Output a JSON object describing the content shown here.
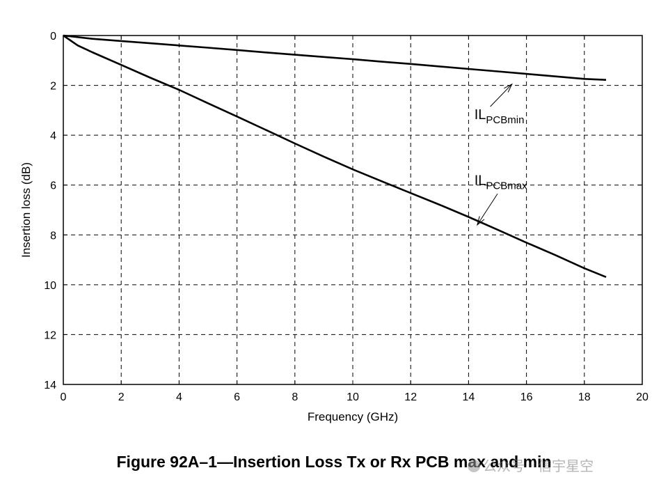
{
  "chart_data": {
    "type": "line",
    "title": "",
    "xlabel": "Frequency (GHz)",
    "ylabel": "Insertion loss (dB)",
    "xlim": [
      0,
      20
    ],
    "ylim": [
      0,
      14
    ],
    "y_inverted": true,
    "grid": true,
    "x_ticks": [
      "0",
      "2",
      "4",
      "6",
      "8",
      "10",
      "12",
      "14",
      "16",
      "18",
      "20"
    ],
    "y_ticks": [
      "0",
      "2",
      "4",
      "6",
      "8",
      "10",
      "12",
      "14"
    ],
    "series": [
      {
        "name": "IL_PCBmin",
        "label_main": "IL",
        "label_sub": "PCBmin",
        "x": [
          0,
          1,
          2,
          3,
          4,
          5,
          6,
          7,
          8,
          9,
          10,
          11,
          12,
          13,
          14,
          15,
          16,
          17,
          18,
          18.75
        ],
        "values": [
          0,
          0.13,
          0.22,
          0.31,
          0.4,
          0.49,
          0.58,
          0.68,
          0.77,
          0.86,
          0.95,
          1.05,
          1.14,
          1.24,
          1.34,
          1.44,
          1.54,
          1.64,
          1.74,
          1.78
        ]
      },
      {
        "name": "IL_PCBmax",
        "label_main": "IL",
        "label_sub": "PCBmax",
        "x": [
          0,
          0.5,
          1,
          2,
          3,
          4,
          5,
          6,
          7,
          8,
          9,
          10,
          11,
          12,
          13,
          14,
          15,
          16,
          17,
          18,
          18.75
        ],
        "values": [
          0,
          0.4,
          0.67,
          1.18,
          1.69,
          2.18,
          2.72,
          3.25,
          3.79,
          4.33,
          4.86,
          5.37,
          5.85,
          6.32,
          6.79,
          7.28,
          7.79,
          8.31,
          8.81,
          9.34,
          9.69
        ]
      }
    ],
    "annotations": [
      {
        "series": "IL_PCBmin",
        "text_main": "IL",
        "text_sub": "PCBmin",
        "text_at": [
          14.2,
          3.35
        ],
        "arrow_from": [
          14.75,
          2.85
        ],
        "arrow_to": [
          15.5,
          1.95
        ]
      },
      {
        "series": "IL_PCBmax",
        "text_main": "IL",
        "text_sub": "PCBmax",
        "text_at": [
          14.2,
          6.0
        ],
        "arrow_from": [
          15.0,
          6.35
        ],
        "arrow_to": [
          14.3,
          7.6
        ]
      }
    ]
  },
  "caption": "Figure 92A–1—Insertion Loss Tx or Rx PCB max and min",
  "watermark": "公众号 · 信宇星空"
}
